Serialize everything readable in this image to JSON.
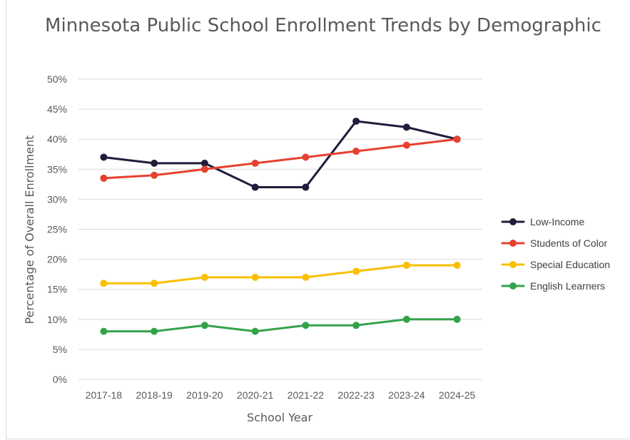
{
  "chart_data": {
    "type": "line",
    "title": "Minnesota Public School Enrollment Trends by Demographic",
    "xlabel": "School Year",
    "ylabel": "Percentage of Overall Enrollment",
    "categories": [
      "2017-18",
      "2018-19",
      "2019-20",
      "2020-21",
      "2021-22",
      "2022-23",
      "2023-24",
      "2024-25"
    ],
    "ylim": [
      0,
      50
    ],
    "yticks": [
      0,
      5,
      10,
      15,
      20,
      25,
      30,
      35,
      40,
      45,
      50
    ],
    "ytick_labels": [
      "0%",
      "5%",
      "10%",
      "15%",
      "20%",
      "25%",
      "30%",
      "35%",
      "40%",
      "45%",
      "50%"
    ],
    "grid": true,
    "legend_position": "right",
    "series": [
      {
        "name": "Low-Income",
        "color": "#1f1d3b",
        "values": [
          37,
          36,
          36,
          32,
          32,
          43,
          42,
          40
        ]
      },
      {
        "name": "Students of Color",
        "color": "#e8402f",
        "values": [
          33.5,
          34,
          35,
          36,
          37,
          38,
          39,
          40
        ]
      },
      {
        "name": "Special Education",
        "color": "#fbbf00",
        "values": [
          16,
          16,
          17,
          17,
          17,
          18,
          19,
          19
        ]
      },
      {
        "name": "English Learners",
        "color": "#33a34a",
        "values": [
          8,
          8,
          9,
          8,
          9,
          9,
          10,
          10
        ]
      }
    ]
  }
}
